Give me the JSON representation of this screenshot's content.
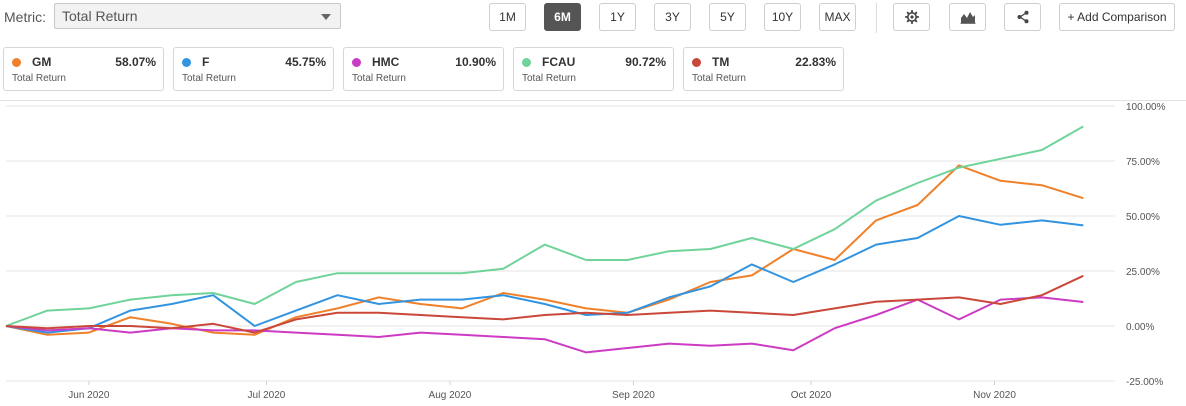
{
  "toolbar": {
    "metric_label": "Metric:",
    "metric_value": "Total Return",
    "ranges": [
      {
        "label": "1M",
        "active": false
      },
      {
        "label": "6M",
        "active": true
      },
      {
        "label": "1Y",
        "active": false
      },
      {
        "label": "3Y",
        "active": false
      },
      {
        "label": "5Y",
        "active": false
      },
      {
        "label": "10Y",
        "active": false
      },
      {
        "label": "MAX",
        "active": false
      }
    ],
    "settings_icon": "gear-icon",
    "chart_type_icon": "area-chart-icon",
    "share_icon": "share-icon",
    "add_comparison": "+ Add Comparison"
  },
  "cards": [
    {
      "ticker": "GM",
      "value": "58.07%",
      "sub": "Total Return",
      "color": "#f0812a"
    },
    {
      "ticker": "F",
      "value": "45.75%",
      "sub": "Total Return",
      "color": "#3294e0"
    },
    {
      "ticker": "HMC",
      "value": "10.90%",
      "sub": "Total Return",
      "color": "#cc3bc4"
    },
    {
      "ticker": "FCAU",
      "value": "90.72%",
      "sub": "Total Return",
      "color": "#6fd39a"
    },
    {
      "ticker": "TM",
      "value": "22.83%",
      "sub": "Total Return",
      "color": "#c9483a"
    }
  ],
  "chart_data": {
    "type": "line",
    "x": [
      "2020-05-18",
      "2020-05-25",
      "2020-06-01",
      "2020-06-08",
      "2020-06-15",
      "2020-06-22",
      "2020-06-29",
      "2020-07-06",
      "2020-07-13",
      "2020-07-20",
      "2020-07-27",
      "2020-08-03",
      "2020-08-10",
      "2020-08-17",
      "2020-08-24",
      "2020-08-31",
      "2020-09-07",
      "2020-09-14",
      "2020-09-21",
      "2020-09-28",
      "2020-10-05",
      "2020-10-12",
      "2020-10-19",
      "2020-10-26",
      "2020-11-02",
      "2020-11-09",
      "2020-11-16"
    ],
    "series": [
      {
        "name": "GM",
        "color": "#f0812a",
        "values": [
          0,
          -4,
          -3,
          4,
          1,
          -3,
          -4,
          4,
          8,
          13,
          10,
          8,
          15,
          12,
          8,
          6,
          12,
          20,
          23,
          35,
          30,
          48,
          55,
          73,
          66,
          64,
          58.07
        ]
      },
      {
        "name": "F",
        "color": "#3294e0",
        "values": [
          0,
          -3,
          -1,
          7,
          10,
          14,
          0,
          7,
          14,
          10,
          12,
          12,
          14,
          10,
          5,
          6,
          13,
          18,
          28,
          20,
          28,
          37,
          40,
          50,
          46,
          48,
          45.75
        ]
      },
      {
        "name": "HMC",
        "color": "#cc3bc4",
        "values": [
          0,
          -2,
          -1,
          -3,
          -1,
          -2,
          -2,
          -3,
          -4,
          -5,
          -3,
          -4,
          -5,
          -6,
          -12,
          -10,
          -8,
          -9,
          -8,
          -11,
          -1,
          5,
          12,
          3,
          12,
          13,
          10.9
        ]
      },
      {
        "name": "FCAU",
        "color": "#6fd39a",
        "values": [
          0,
          7,
          8,
          12,
          14,
          15,
          10,
          20,
          24,
          24,
          24,
          24,
          26,
          37,
          30,
          30,
          34,
          35,
          40,
          35,
          44,
          57,
          65,
          72,
          76,
          80,
          90.72
        ]
      },
      {
        "name": "TM",
        "color": "#c9483a",
        "values": [
          0,
          -1,
          0,
          0,
          -1,
          1,
          -3,
          3,
          6,
          6,
          5,
          4,
          3,
          5,
          6,
          5,
          6,
          7,
          6,
          5,
          8,
          11,
          12,
          13,
          10,
          14,
          22.83
        ]
      }
    ],
    "ylim": [
      -25,
      100
    ],
    "ticks": [
      "100.00%",
      "75.00%",
      "50.00%",
      "25.00%",
      "0.00%",
      "-25.00%"
    ],
    "tick_values": [
      100,
      75,
      50,
      25,
      0,
      -25
    ],
    "xticks": [
      "Jun 2020",
      "Jul 2020",
      "Aug 2020",
      "Sep 2020",
      "Oct 2020",
      "Nov 2020"
    ],
    "xtick_dates": [
      "2020-06-01",
      "2020-07-01",
      "2020-08-01",
      "2020-09-01",
      "2020-10-01",
      "2020-11-01"
    ],
    "grid": true,
    "legend": "top"
  }
}
